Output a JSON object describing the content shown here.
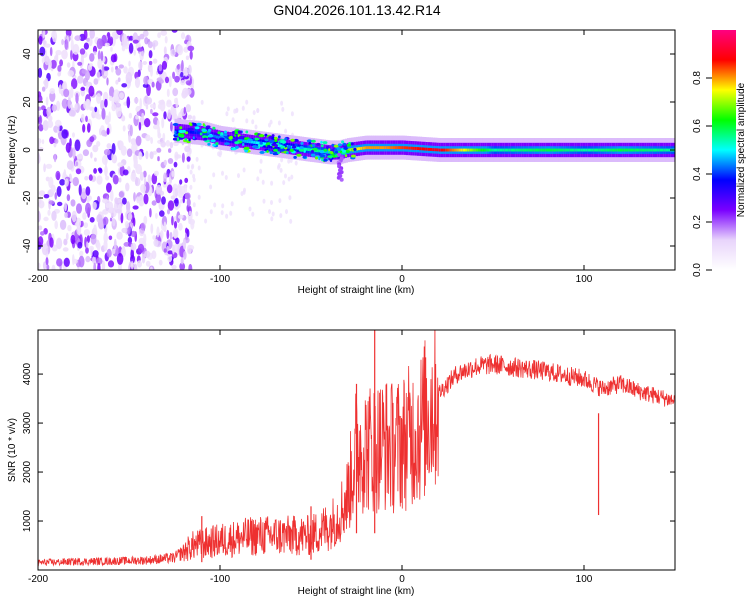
{
  "title": "GN04.2026.101.13.42.R14",
  "chart_data": [
    {
      "type": "heatmap",
      "name": "spectrogram",
      "xlabel": "Height of straight line (km)",
      "ylabel": "Frequency (Hz)",
      "xlim": [
        -200,
        150
      ],
      "ylim": [
        -50,
        50
      ],
      "xticks": [
        -200,
        -100,
        0,
        100
      ],
      "yticks": [
        -40,
        -20,
        0,
        20,
        40
      ],
      "noise_region_x": [
        -200,
        -120
      ],
      "signal_ridge": {
        "x": [
          -125,
          -110,
          -100,
          -90,
          -80,
          -70,
          -60,
          -50,
          -40,
          -35,
          -30,
          -20,
          -10,
          0,
          20,
          50,
          80,
          100,
          120,
          150
        ],
        "freq": [
          8,
          7,
          5,
          4,
          3,
          2,
          1,
          0,
          -1,
          -1,
          0,
          1,
          1,
          1,
          0,
          0,
          0,
          0,
          0,
          0
        ],
        "amplitude": [
          0.35,
          0.4,
          0.45,
          0.45,
          0.5,
          0.5,
          0.5,
          0.55,
          0.55,
          0.6,
          0.7,
          0.8,
          0.8,
          0.85,
          0.9,
          0.55,
          0.6,
          0.55,
          0.6,
          0.55
        ]
      },
      "colorbar": {
        "label": "Normalized spectral amplitude",
        "range": [
          0,
          1
        ],
        "ticks": [
          "0.0",
          "0.2",
          "0.4",
          "0.6",
          "0.8"
        ],
        "colors": [
          "#ffffff",
          "#e8d4fb",
          "#7a00ff",
          "#0000ff",
          "#00ffff",
          "#00ff00",
          "#ffff00",
          "#ff0000",
          "#ff0080"
        ]
      }
    },
    {
      "type": "line",
      "name": "snr",
      "xlabel": "Height of straight line (km)",
      "ylabel": "SNR (10 * v/v)",
      "xlim": [
        -200,
        150
      ],
      "ylim": [
        0,
        4900
      ],
      "xticks": [
        -200,
        -100,
        0,
        100
      ],
      "yticks": [
        1000,
        2000,
        3000,
        4000
      ],
      "color": "#ee3030",
      "series": [
        {
          "name": "SNR",
          "x": [
            -200,
            -180,
            -160,
            -140,
            -125,
            -115,
            -100,
            -80,
            -60,
            -50,
            -40,
            -35,
            -30,
            -25,
            -20,
            -15,
            -10,
            -5,
            0,
            10,
            20,
            30,
            40,
            50,
            60,
            80,
            100,
            110,
            120,
            130,
            140,
            150
          ],
          "y": [
            150,
            170,
            180,
            200,
            250,
            500,
            600,
            700,
            700,
            700,
            900,
            1100,
            1500,
            2500,
            2500,
            2500,
            2600,
            2500,
            2600,
            2900,
            3600,
            4000,
            4150,
            4200,
            4150,
            4050,
            3900,
            3700,
            3800,
            3650,
            3550,
            3450
          ]
        }
      ],
      "spikes": [
        {
          "x": -15,
          "y": 4900
        },
        {
          "x": -25,
          "y": 3800
        },
        {
          "x": -50,
          "y": 1300
        },
        {
          "x": -110,
          "y": 1100
        },
        {
          "x": 108,
          "y": 3200
        }
      ]
    }
  ]
}
